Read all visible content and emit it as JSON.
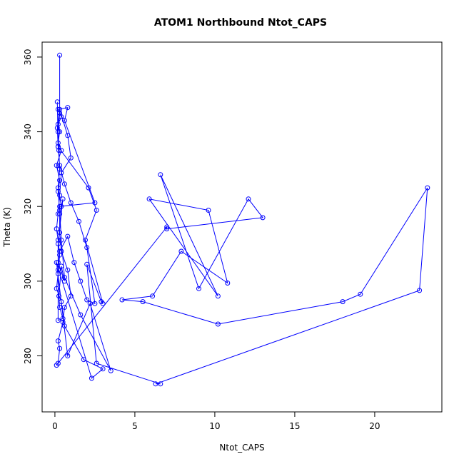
{
  "chart_data": {
    "type": "line",
    "title": "ATOM1 Northbound Ntot_CAPS",
    "xlabel": "Ntot_CAPS",
    "ylabel": "Theta (K)",
    "xlim": [
      -0.8,
      24.2
    ],
    "ylim": [
      265,
      364
    ],
    "xticks": [
      0,
      5,
      10,
      15,
      20
    ],
    "yticks": [
      280,
      300,
      320,
      340,
      360
    ],
    "grid": false,
    "legend": "none",
    "series_color": "#0000ff",
    "markers": "open-circle",
    "series": [
      {
        "x": [
          0.3,
          0.3,
          0.2,
          0.25,
          0.3,
          0.2,
          0.4,
          0.3,
          0.5,
          0.2,
          0.2,
          0.6,
          0.4,
          0.25,
          0.3,
          0.5,
          0.2,
          0.2,
          0.3,
          0.8,
          1.2,
          1.6,
          2.0,
          2.5,
          2.0,
          1.5,
          1.0,
          0.6,
          0.3,
          0.2,
          0.15,
          0.3,
          0.8,
          1.0,
          0.4,
          0.3,
          0.2,
          0.1,
          0.2,
          0.3,
          0.2,
          0.1,
          0.4,
          0.6,
          1.8,
          3.0,
          2.3,
          0.1,
          0.8,
          2.2,
          3.5,
          1.6,
          0.6,
          0.4,
          0.3,
          0.2,
          0.3,
          0.1,
          0.4,
          0.2,
          0.3,
          0.2,
          0.4,
          0.2,
          0.8,
          0.6,
          2.5,
          0.3,
          0.3,
          0.3,
          0.4,
          0.8,
          1.0,
          0.6,
          0.5,
          0.2,
          0.3,
          0.2,
          0.1,
          7.0,
          7.0,
          13.0,
          12.1,
          9.0,
          6.6,
          10.2,
          5.9,
          9.6,
          10.8,
          7.9,
          6.1,
          4.2,
          5.5,
          10.2,
          18.0,
          19.1,
          23.3,
          22.8,
          6.3,
          6.6,
          2.6,
          2.0,
          2.9,
          3.0,
          1.9,
          2.6,
          2.1,
          0.2,
          0.15
        ],
        "y": [
          360.5,
          345.0,
          340.0,
          335.0,
          330.0,
          325.0,
          320.0,
          318.0,
          322.0,
          310.0,
          305.0,
          300.0,
          304.0,
          296.0,
          293.0,
          290.0,
          289.5,
          303.0,
          308.0,
          312.0,
          305.0,
          300.0,
          295.0,
          294.0,
          309.0,
          316.0,
          321.0,
          326.0,
          331.0,
          336.0,
          341.0,
          346.0,
          339.0,
          333.0,
          329.0,
          323.0,
          318.0,
          314.0,
          311.0,
          307.0,
          302.0,
          298.0,
          294.5,
          288.0,
          279.0,
          276.5,
          274.0,
          305.0,
          280.0,
          294.0,
          276.0,
          291.0,
          301.0,
          311.0,
          319.0,
          324.0,
          327.0,
          331.0,
          335.0,
          337.0,
          340.0,
          342.0,
          344.0,
          346.0,
          346.5,
          343.0,
          321.0,
          320.0,
          318.0,
          313.0,
          308.0,
          303.0,
          296.0,
          293.0,
          289.0,
          284.0,
          282.0,
          278.0,
          277.5,
          314.5,
          314.0,
          317.0,
          322.0,
          298.0,
          328.5,
          296.0,
          322.0,
          319.0,
          299.5,
          308.0,
          296.0,
          295.0,
          294.5,
          288.5,
          294.5,
          296.5,
          325.0,
          297.5,
          272.5,
          272.5,
          278.0,
          304.5,
          294.5,
          294.0,
          311.0,
          319.0,
          325.0,
          336.0,
          348.0
        ]
      }
    ]
  }
}
